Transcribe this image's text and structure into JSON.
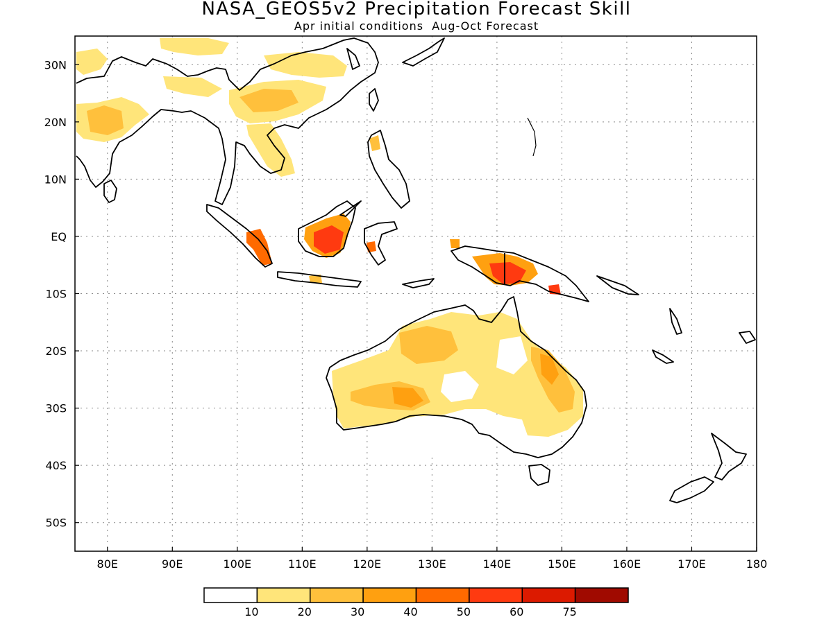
{
  "title": "NASA_GEOS5v2 Precipitation Forecast Skill",
  "subtitle": "Apr initial conditions  Aug-Oct Forecast",
  "map": {
    "lon_range": [
      75,
      180
    ],
    "lat_range": [
      -55,
      35
    ],
    "lon_ticks": [
      "80E",
      "90E",
      "100E",
      "110E",
      "120E",
      "130E",
      "140E",
      "150E",
      "160E",
      "170E",
      "180"
    ],
    "lat_ticks": [
      "30N",
      "20N",
      "10N",
      "EQ",
      "10S",
      "20S",
      "30S",
      "40S",
      "50S"
    ],
    "grid": true
  },
  "colorbar": {
    "labels": [
      "10",
      "20",
      "30",
      "40",
      "50",
      "60",
      "75"
    ],
    "colors": [
      "#ffffff",
      "#ffe57a",
      "#ffc03c",
      "#ffa010",
      "#ff6a00",
      "#ff3a10",
      "#dc1a00",
      "#a00a00"
    ]
  }
}
